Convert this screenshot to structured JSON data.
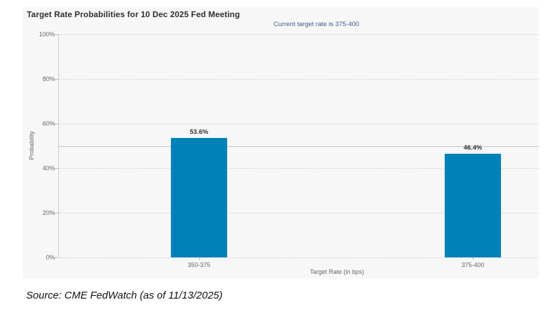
{
  "chart": {
    "title": "Target Rate Probabilities for 10 Dec 2025 Fed Meeting",
    "subtitle": "Current target rate is 375-400",
    "ylabel": "Probability",
    "xlabel": "Target Rate (in bps)"
  },
  "source": {
    "text": "Source: CME FedWatch (as of 11/13/2025)"
  },
  "chart_data": {
    "type": "bar",
    "title": "Target Rate Probabilities for 10 Dec 2025 Fed Meeting",
    "subtitle": "Current target rate is 375-400",
    "categories": [
      "350-375",
      "375-400"
    ],
    "values": [
      53.6,
      46.4
    ],
    "value_labels": [
      "53.6%",
      "46.4%"
    ],
    "xlabel": "Target Rate (in bps)",
    "ylabel": "Probability",
    "ylim": [
      0,
      100
    ],
    "yticks": [
      0,
      20,
      40,
      60,
      80,
      100
    ],
    "ytick_labels": [
      "0%",
      "20%",
      "40%",
      "60%",
      "80%",
      "100%"
    ],
    "reference_line": 50,
    "grid": "dotted-horizontal",
    "legend": "none",
    "colors": {
      "bar": "#0081b8",
      "subtitle_text": "#41598c",
      "panel_bg": "#f7f7f7",
      "grid_dotted": "#cfcfcf",
      "reference_line": "#c2c2c2",
      "tick_text": "#666666",
      "value_text": "#333333"
    }
  }
}
